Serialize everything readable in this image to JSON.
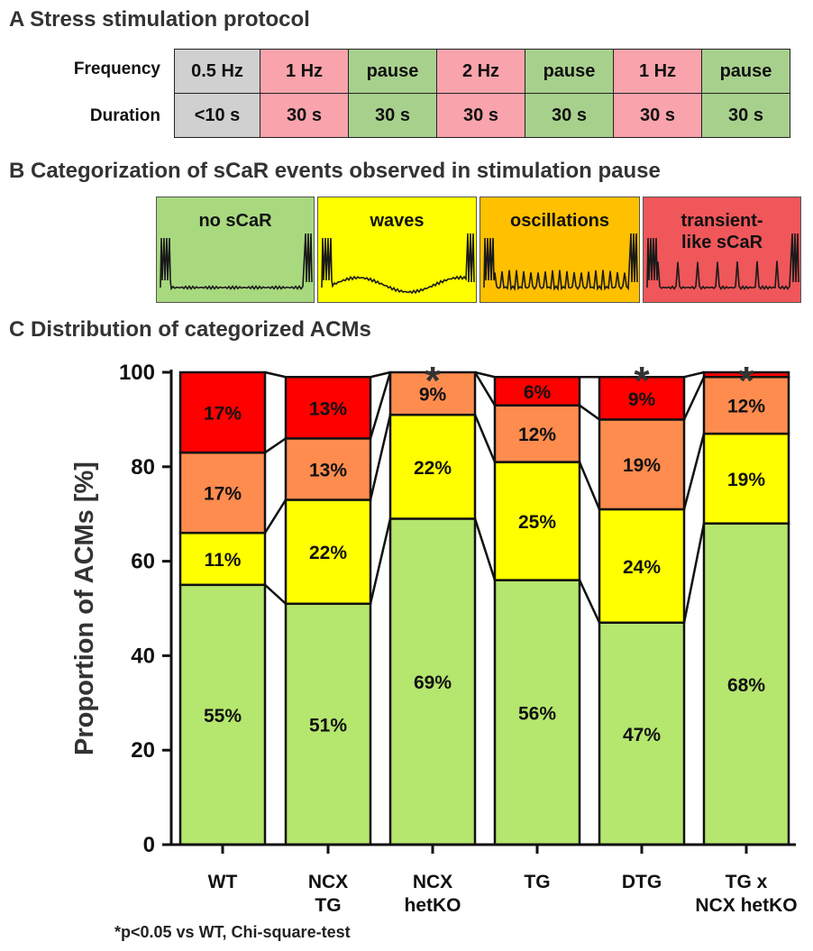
{
  "section_a": {
    "title": "A Stress stimulation protocol",
    "frequency_label": "Frequency",
    "duration_label": "Duration",
    "frequency": [
      "0.5 Hz",
      "1 Hz",
      "pause",
      "2 Hz",
      "pause",
      "1 Hz",
      "pause"
    ],
    "duration": [
      "<10 s",
      "30 s",
      "30 s",
      "30 s",
      "30 s",
      "30 s",
      "30 s"
    ],
    "cell_colors": [
      "#d0d0d0",
      "#f9a3ac",
      "#a8d08d",
      "#f9a3ac",
      "#a8d08d",
      "#f9a3ac",
      "#a8d08d"
    ]
  },
  "section_b": {
    "title": "B Categorization of sCaR events observed in stimulation pause",
    "categories": [
      {
        "label": "no sCaR",
        "color": "#a8d97f"
      },
      {
        "label": "waves",
        "color": "#ffff00"
      },
      {
        "label": "oscillations",
        "color": "#ffc000"
      },
      {
        "label": "transient-\nlike sCaR",
        "color": "#f0575a"
      }
    ]
  },
  "section_c": {
    "title": "C Distribution of categorized ACMs",
    "footnote": "*p<0.05 vs WT, Chi-square-test"
  },
  "chart_data": {
    "type": "bar",
    "stacked": true,
    "ylabel": "Proportion of ACMs [%]",
    "ylim": [
      0,
      100
    ],
    "yticks": [
      0,
      20,
      40,
      60,
      80,
      100
    ],
    "categories": [
      "WT",
      "NCX\nTG",
      "NCX\nhetKO",
      "TG",
      "DTG",
      "TG x\nNCX hetKO"
    ],
    "significance": [
      "",
      "",
      "*",
      "",
      "*",
      "*"
    ],
    "series": [
      {
        "color": "#b5e66e",
        "values": [
          55,
          51,
          69,
          56,
          47,
          68
        ],
        "labels": [
          "55%",
          "51%",
          "69%",
          "56%",
          "47%",
          "68%"
        ]
      },
      {
        "color": "#ffff00",
        "values": [
          11,
          22,
          22,
          25,
          24,
          19
        ],
        "labels": [
          "11%",
          "22%",
          "22%",
          "25%",
          "24%",
          "19%"
        ]
      },
      {
        "color": "#ff8c4f",
        "values": [
          17,
          13,
          9,
          12,
          19,
          12
        ],
        "labels": [
          "17%",
          "13%",
          "9%",
          "12%",
          "19%",
          "12%"
        ]
      },
      {
        "color": "#ff0000",
        "values": [
          17,
          13,
          0,
          6,
          9,
          1
        ],
        "labels": [
          "17%",
          "13%",
          "",
          "6%",
          "9%",
          ""
        ]
      }
    ]
  }
}
